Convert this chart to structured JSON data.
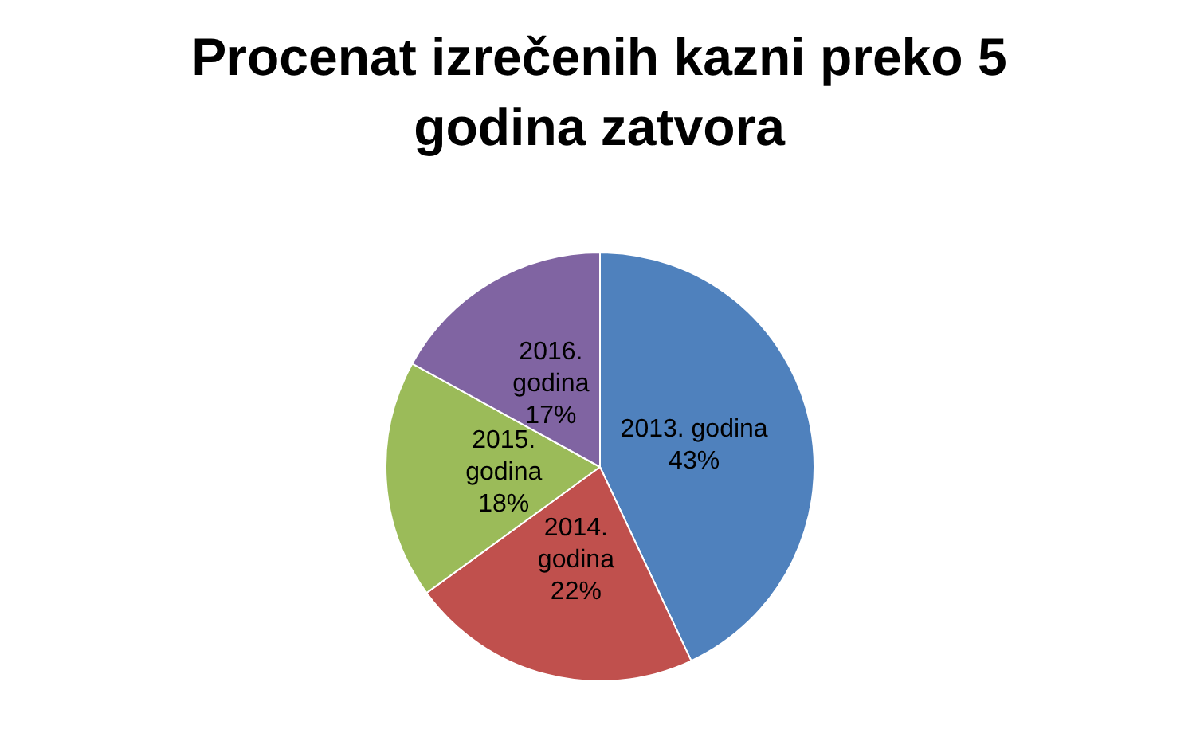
{
  "chart_data": {
    "type": "pie",
    "title": "Procenat izrečenih kazni preko 5 godina zatvora",
    "categories": [
      "2013. godina",
      "2014. godina",
      "2015. godina",
      "2016. godina"
    ],
    "values": [
      43,
      22,
      18,
      17
    ],
    "value_labels": [
      "43%",
      "22%",
      "18%",
      "17%"
    ],
    "colors": [
      "#4f81bd",
      "#c0504d",
      "#9bbb59",
      "#8064a2"
    ],
    "legend": false
  }
}
